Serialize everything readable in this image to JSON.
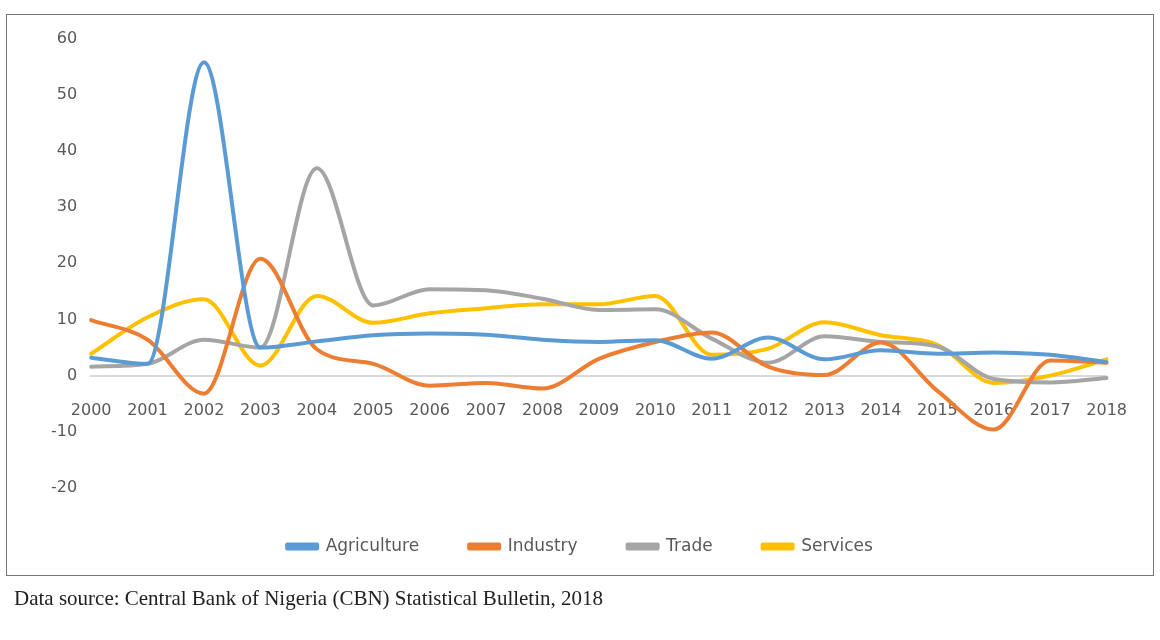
{
  "chart_data": {
    "type": "line",
    "categories": [
      "2000",
      "2001",
      "2002",
      "2003",
      "2004",
      "2005",
      "2006",
      "2007",
      "2008",
      "2009",
      "2010",
      "2011",
      "2012",
      "2013",
      "2014",
      "2015",
      "2016",
      "2017",
      "2018"
    ],
    "series": [
      {
        "name": "Agriculture",
        "color": "#5b9bd5",
        "values": [
          3.2,
          2.1,
          55.8,
          5.0,
          6.1,
          7.2,
          7.5,
          7.3,
          6.4,
          6.0,
          6.3,
          3.0,
          6.8,
          2.9,
          4.5,
          3.9,
          4.1,
          3.7,
          2.4
        ]
      },
      {
        "name": "Industry",
        "color": "#ed7d31",
        "values": [
          9.9,
          6.4,
          -3.2,
          20.8,
          4.7,
          2.1,
          -1.8,
          -1.3,
          -2.3,
          3.0,
          6.0,
          7.7,
          1.6,
          0.1,
          5.9,
          -2.7,
          -9.6,
          2.7,
          2.3
        ]
      },
      {
        "name": "Trade",
        "color": "#a5a5a5",
        "values": [
          1.6,
          2.1,
          6.4,
          5.0,
          36.9,
          12.5,
          15.4,
          15.2,
          13.7,
          11.7,
          11.8,
          6.6,
          2.3,
          7.0,
          6.0,
          5.2,
          -0.6,
          -1.2,
          -0.4
        ]
      },
      {
        "name": "Services",
        "color": "#ffc000",
        "values": [
          3.9,
          10.4,
          13.6,
          1.8,
          14.2,
          9.4,
          11.1,
          12.0,
          12.7,
          12.7,
          14.2,
          3.7,
          4.8,
          9.5,
          7.2,
          5.5,
          -1.3,
          0.0,
          2.9
        ]
      }
    ],
    "ylim": [
      -20,
      60
    ],
    "yticks": [
      -20,
      -10,
      0,
      10,
      20,
      30,
      40,
      50,
      60
    ],
    "grid": false,
    "legend": "bottom",
    "marker": "none",
    "line_style": "solid",
    "annotations": [
      "Data source: Central Bank of Nigeria (CBN) Statistical Bulletin, 2018"
    ]
  }
}
